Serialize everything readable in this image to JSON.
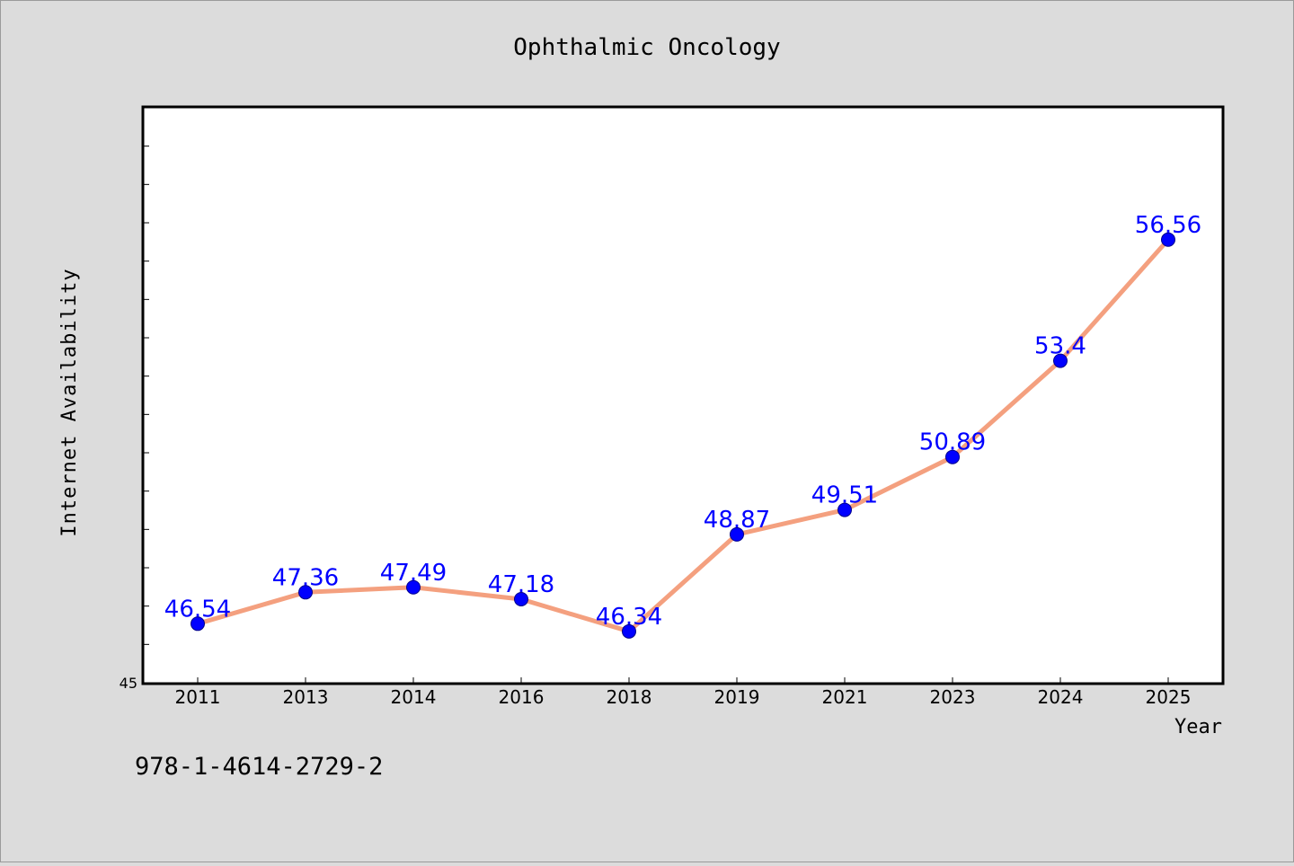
{
  "chart_data": {
    "type": "line",
    "title": "Ophthalmic Oncology",
    "xlabel": "Year",
    "ylabel": "Internet Availability",
    "categories": [
      "2011",
      "2013",
      "2014",
      "2016",
      "2018",
      "2019",
      "2021",
      "2023",
      "2024",
      "2025"
    ],
    "series": [
      {
        "values": [
          46.54,
          47.36,
          47.49,
          47.18,
          46.34,
          48.87,
          49.51,
          50.89,
          53.4,
          56.56
        ],
        "labels": [
          "46.54",
          "47.36",
          "47.49",
          "47.18",
          "46.34",
          "48.87",
          "49.51",
          "50.89",
          "53.4",
          "56.56"
        ],
        "line_color": "#f4a07f",
        "marker_color": "#0000ff",
        "label_color": "#0000ff"
      }
    ],
    "ylim": [
      45,
      60
    ],
    "y_tick_labels": [
      "45"
    ],
    "grid": false,
    "legend": "none"
  },
  "footer": {
    "isbn": "978-1-4614-2729-2"
  },
  "colors": {
    "background": "#dcdcdc",
    "plot_background": "#ffffff",
    "axis": "#000000"
  }
}
